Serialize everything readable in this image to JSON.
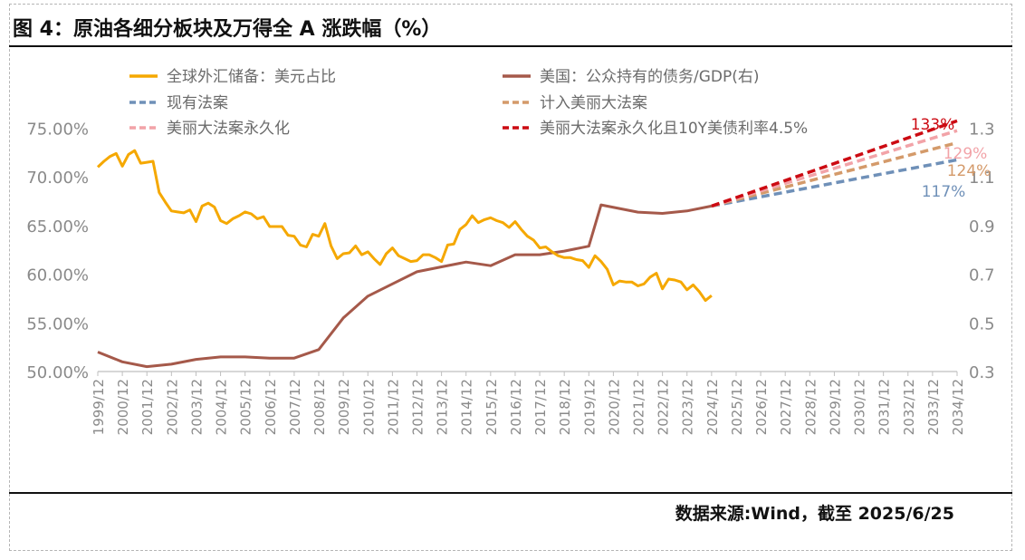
{
  "title": "图 4：原油各细分板块及万得全 A 涨跌幅（%）",
  "source": "数据来源:Wind，截至 2025/6/25",
  "chart_data": {
    "type": "line",
    "title": "图 4：原油各细分板块及万得全 A 涨跌幅（%）",
    "x_categories": [
      "1999/12",
      "2000/12",
      "2001/12",
      "2002/12",
      "2003/12",
      "2004/12",
      "2005/12",
      "2006/12",
      "2007/12",
      "2008/12",
      "2009/12",
      "2010/12",
      "2011/12",
      "2012/12",
      "2013/12",
      "2014/12",
      "2015/12",
      "2016/12",
      "2017/12",
      "2018/12",
      "2019/12",
      "2020/12",
      "2021/12",
      "2022/12",
      "2023/12",
      "2024/12",
      "2025/12",
      "2026/12",
      "2027/12",
      "2028/12",
      "2029/12",
      "2030/12",
      "2031/12",
      "2032/12",
      "2033/12",
      "2034/12"
    ],
    "y_left": {
      "ticks": [
        "50.00%",
        "55.00%",
        "60.00%",
        "65.00%",
        "70.00%",
        "75.00%"
      ],
      "range": [
        50,
        77
      ]
    },
    "y_right": {
      "ticks": [
        "0.3",
        "0.5",
        "0.7",
        "0.9",
        "1.1",
        "1.3"
      ],
      "range": [
        0.3,
        1.38
      ]
    },
    "series": [
      {
        "name": "全球外汇储备：美元占比",
        "axis": "left",
        "color": "#F5A800",
        "style": "solid",
        "points": [
          [
            1999.95,
            71.0
          ],
          [
            2000.2,
            71.6
          ],
          [
            2000.45,
            72.1
          ],
          [
            2000.7,
            72.4
          ],
          [
            2000.95,
            71.1
          ],
          [
            2001.2,
            72.3
          ],
          [
            2001.45,
            72.7
          ],
          [
            2001.7,
            71.4
          ],
          [
            2001.95,
            71.5
          ],
          [
            2002.2,
            71.6
          ],
          [
            2002.45,
            68.4
          ],
          [
            2002.7,
            67.4
          ],
          [
            2002.95,
            66.5
          ],
          [
            2003.2,
            66.4
          ],
          [
            2003.45,
            66.3
          ],
          [
            2003.7,
            66.6
          ],
          [
            2003.95,
            65.4
          ],
          [
            2004.2,
            67.0
          ],
          [
            2004.45,
            67.3
          ],
          [
            2004.7,
            66.9
          ],
          [
            2004.95,
            65.5
          ],
          [
            2005.2,
            65.2
          ],
          [
            2005.45,
            65.7
          ],
          [
            2005.7,
            66.0
          ],
          [
            2005.95,
            66.4
          ],
          [
            2006.2,
            66.2
          ],
          [
            2006.45,
            65.7
          ],
          [
            2006.7,
            65.9
          ],
          [
            2006.95,
            64.9
          ],
          [
            2007.2,
            64.9
          ],
          [
            2007.45,
            64.9
          ],
          [
            2007.7,
            64.0
          ],
          [
            2007.95,
            63.9
          ],
          [
            2008.2,
            63.0
          ],
          [
            2008.45,
            62.8
          ],
          [
            2008.7,
            64.1
          ],
          [
            2008.95,
            63.9
          ],
          [
            2009.2,
            65.2
          ],
          [
            2009.45,
            62.9
          ],
          [
            2009.7,
            61.6
          ],
          [
            2009.95,
            62.1
          ],
          [
            2010.2,
            62.2
          ],
          [
            2010.45,
            62.9
          ],
          [
            2010.7,
            62.0
          ],
          [
            2010.95,
            62.3
          ],
          [
            2011.2,
            61.6
          ],
          [
            2011.45,
            61.0
          ],
          [
            2011.7,
            62.1
          ],
          [
            2011.95,
            62.7
          ],
          [
            2012.2,
            61.9
          ],
          [
            2012.45,
            61.6
          ],
          [
            2012.7,
            61.3
          ],
          [
            2012.95,
            61.4
          ],
          [
            2013.2,
            62.0
          ],
          [
            2013.45,
            62.0
          ],
          [
            2013.7,
            61.7
          ],
          [
            2013.95,
            61.3
          ],
          [
            2014.2,
            63.0
          ],
          [
            2014.45,
            63.1
          ],
          [
            2014.7,
            64.6
          ],
          [
            2014.95,
            65.1
          ],
          [
            2015.2,
            66.0
          ],
          [
            2015.45,
            65.3
          ],
          [
            2015.7,
            65.6
          ],
          [
            2015.95,
            65.8
          ],
          [
            2016.2,
            65.5
          ],
          [
            2016.45,
            65.3
          ],
          [
            2016.7,
            64.8
          ],
          [
            2016.95,
            65.4
          ],
          [
            2017.2,
            64.6
          ],
          [
            2017.45,
            63.9
          ],
          [
            2017.7,
            63.5
          ],
          [
            2017.95,
            62.7
          ],
          [
            2018.2,
            62.8
          ],
          [
            2018.45,
            62.3
          ],
          [
            2018.7,
            61.9
          ],
          [
            2018.95,
            61.7
          ],
          [
            2019.2,
            61.7
          ],
          [
            2019.45,
            61.5
          ],
          [
            2019.7,
            61.4
          ],
          [
            2019.95,
            60.7
          ],
          [
            2020.2,
            61.9
          ],
          [
            2020.45,
            61.3
          ],
          [
            2020.7,
            60.5
          ],
          [
            2020.95,
            58.9
          ],
          [
            2021.2,
            59.3
          ],
          [
            2021.45,
            59.2
          ],
          [
            2021.7,
            59.2
          ],
          [
            2021.95,
            58.8
          ],
          [
            2022.2,
            59.0
          ],
          [
            2022.45,
            59.7
          ],
          [
            2022.7,
            60.1
          ],
          [
            2022.95,
            58.5
          ],
          [
            2023.2,
            59.5
          ],
          [
            2023.45,
            59.4
          ],
          [
            2023.7,
            59.2
          ],
          [
            2023.95,
            58.4
          ],
          [
            2024.2,
            58.9
          ],
          [
            2024.45,
            58.2
          ],
          [
            2024.7,
            57.3
          ],
          [
            2024.95,
            57.8
          ]
        ]
      },
      {
        "name": "美国：公众持有的债务/GDP(右)",
        "axis": "right",
        "color": "#A5594A",
        "style": "solid",
        "points": [
          [
            1999.95,
            0.38
          ],
          [
            2000.95,
            0.34
          ],
          [
            2001.95,
            0.32
          ],
          [
            2002.95,
            0.33
          ],
          [
            2003.95,
            0.35
          ],
          [
            2004.95,
            0.36
          ],
          [
            2005.95,
            0.36
          ],
          [
            2006.95,
            0.355
          ],
          [
            2007.95,
            0.355
          ],
          [
            2008.95,
            0.39
          ],
          [
            2009.95,
            0.52
          ],
          [
            2010.95,
            0.61
          ],
          [
            2011.95,
            0.66
          ],
          [
            2012.95,
            0.71
          ],
          [
            2013.95,
            0.73
          ],
          [
            2014.95,
            0.75
          ],
          [
            2015.95,
            0.735
          ],
          [
            2016.95,
            0.78
          ],
          [
            2017.95,
            0.78
          ],
          [
            2018.95,
            0.795
          ],
          [
            2019.95,
            0.815
          ],
          [
            2020.45,
            0.985
          ],
          [
            2021.95,
            0.955
          ],
          [
            2022.95,
            0.95
          ],
          [
            2023.95,
            0.96
          ],
          [
            2024.95,
            0.98
          ]
        ]
      },
      {
        "name": "现有法案",
        "axis": "right",
        "color": "#6F90B8",
        "style": "dashed",
        "points": [
          [
            2024.95,
            0.98
          ],
          [
            2034.95,
            1.17
          ]
        ],
        "end_label": "117%"
      },
      {
        "name": "计入美丽大法案",
        "axis": "right",
        "color": "#D49A6A",
        "style": "dashed",
        "points": [
          [
            2024.95,
            0.98
          ],
          [
            2034.95,
            1.24
          ]
        ],
        "end_label": "124%"
      },
      {
        "name": "美丽大法案永久化",
        "axis": "right",
        "color": "#F2A3A8",
        "style": "dashed",
        "points": [
          [
            2024.95,
            0.98
          ],
          [
            2034.95,
            1.29
          ]
        ],
        "end_label": "129%"
      },
      {
        "name": "美丽大法案永久化且10Y美债利率4.5%",
        "axis": "right",
        "color": "#CC0A12",
        "style": "dashed",
        "points": [
          [
            2024.95,
            0.98
          ],
          [
            2034.95,
            1.33
          ]
        ],
        "end_label": "133%"
      }
    ]
  }
}
